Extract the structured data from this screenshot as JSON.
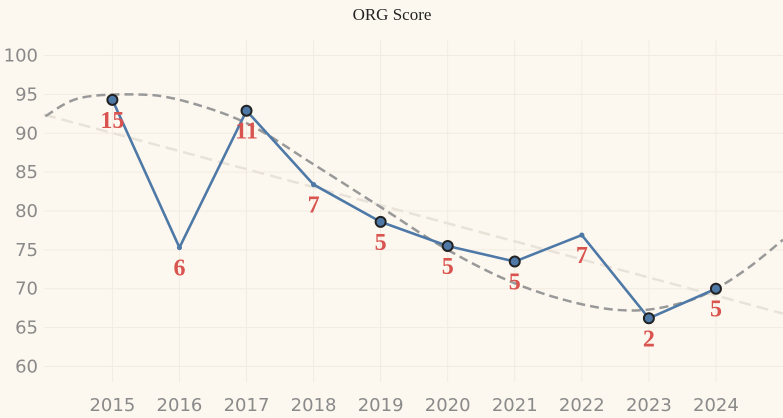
{
  "chart_data": {
    "type": "line",
    "title": "ORG Score",
    "xlabel": "",
    "ylabel": "",
    "categories": [
      "2015",
      "2016",
      "2017",
      "2018",
      "2019",
      "2020",
      "2021",
      "2022",
      "2023",
      "2024"
    ],
    "series": [
      {
        "values": [
          94.3,
          75.3,
          92.9,
          83.4,
          78.6,
          75.5,
          73.5,
          76.9,
          66.2,
          70.0
        ],
        "counts": [
          15,
          6,
          11,
          7,
          5,
          5,
          5,
          7,
          2,
          5
        ],
        "count_labels": [
          "15",
          "6",
          "11",
          "7",
          "5",
          "5",
          "5",
          "7",
          "2",
          "5"
        ],
        "highlighted": [
          true,
          false,
          true,
          false,
          true,
          true,
          true,
          false,
          true,
          true
        ],
        "color": "#4e79a7"
      }
    ],
    "linear_trend": {
      "at_left_edge": 92.4,
      "at_right_edge": 66.8,
      "color": "#e8e2d9",
      "style": "dashed"
    },
    "polynomial_trend": {
      "points": [
        [
          2014.0,
          92.2
        ],
        [
          2014.5,
          94.5
        ],
        [
          2015.3,
          95.0
        ],
        [
          2016.0,
          94.3
        ],
        [
          2017.0,
          91.3
        ],
        [
          2018.0,
          86.0
        ],
        [
          2019.0,
          80.5
        ],
        [
          2020.0,
          75.0
        ],
        [
          2021.0,
          70.7
        ],
        [
          2022.0,
          68.0
        ],
        [
          2022.8,
          67.2
        ],
        [
          2023.5,
          68.2
        ],
        [
          2024.0,
          70.0
        ],
        [
          2024.5,
          72.8
        ],
        [
          2025.0,
          76.3
        ]
      ],
      "color": "#999999",
      "style": "dashed"
    },
    "y_ticks": [
      60,
      65,
      70,
      75,
      80,
      85,
      90,
      95,
      100
    ],
    "y_tick_labels": [
      "60",
      "65",
      "70",
      "75",
      "80",
      "85",
      "90",
      "95",
      "100"
    ],
    "ylim": [
      58,
      102
    ],
    "xlim": [
      2013.98,
      2025.0
    ],
    "grid": true,
    "legend": "none",
    "colors": {
      "background": "#fdf8ef",
      "grid": "#f1ebe1",
      "marker_fill": "#4e79a7",
      "marker_stroke": "#222222",
      "count_label": "#d9534f",
      "tick_label": "#8a8a8a"
    }
  }
}
